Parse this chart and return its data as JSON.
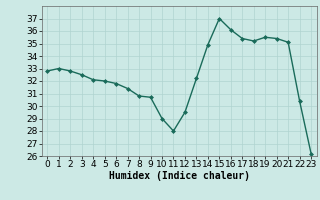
{
  "x": [
    0,
    1,
    2,
    3,
    4,
    5,
    6,
    7,
    8,
    9,
    10,
    11,
    12,
    13,
    14,
    15,
    16,
    17,
    18,
    19,
    20,
    21,
    22,
    23
  ],
  "y": [
    32.8,
    33.0,
    32.8,
    32.5,
    32.1,
    32.0,
    31.8,
    31.4,
    30.8,
    30.7,
    29.0,
    28.0,
    29.5,
    32.2,
    34.9,
    37.0,
    36.1,
    35.4,
    35.2,
    35.5,
    35.4,
    35.1,
    30.4,
    26.2
  ],
  "line_color": "#1a6b5a",
  "marker": "D",
  "markersize": 2,
  "linewidth": 1.0,
  "xlabel": "Humidex (Indice chaleur)",
  "xlabel_fontsize": 7,
  "ylim": [
    26,
    38
  ],
  "xlim": [
    -0.5,
    23.5
  ],
  "yticks": [
    26,
    27,
    28,
    29,
    30,
    31,
    32,
    33,
    34,
    35,
    36,
    37
  ],
  "xticks": [
    0,
    1,
    2,
    3,
    4,
    5,
    6,
    7,
    8,
    9,
    10,
    11,
    12,
    13,
    14,
    15,
    16,
    17,
    18,
    19,
    20,
    21,
    22,
    23
  ],
  "background_color": "#cce9e5",
  "grid_color": "#b0d4d0",
  "tick_fontsize": 6.5
}
